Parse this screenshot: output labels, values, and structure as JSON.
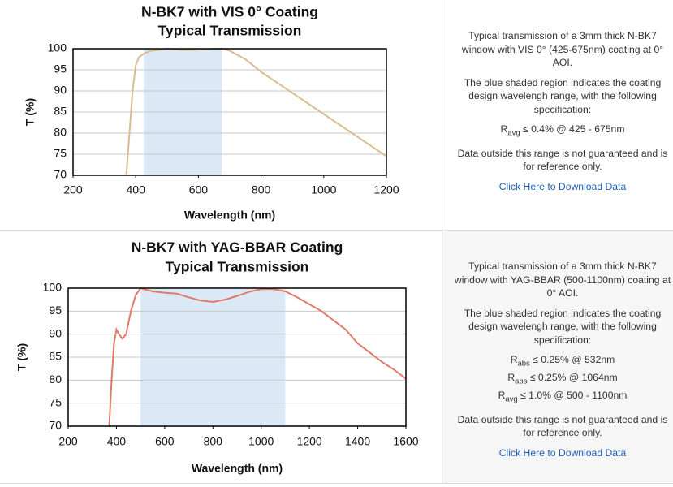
{
  "chart_data": [
    {
      "type": "line",
      "title": "N-BK7 with VIS 0° Coating",
      "subtitle": "Typical Transmission",
      "x_label": "Wavelength (nm)",
      "y_label": "T (%)",
      "x": [
        370,
        380,
        390,
        400,
        410,
        430,
        450,
        500,
        550,
        600,
        650,
        680,
        700,
        750,
        800,
        850,
        900,
        950,
        1000,
        1050,
        1100,
        1150,
        1200
      ],
      "values": [
        70,
        80,
        90,
        96,
        98,
        99,
        99.5,
        100,
        99.7,
        99.8,
        100,
        100,
        99.5,
        97.5,
        94.5,
        92,
        89.5,
        87,
        84.5,
        82,
        79.5,
        77,
        74.5
      ],
      "color": "#d9bc8f",
      "highlight_range": [
        425,
        675
      ],
      "highlight_color": "#dbe9f6",
      "xlim": [
        200,
        1200
      ],
      "xticks": [
        200,
        400,
        600,
        800,
        1000,
        1200
      ],
      "ylim": [
        70,
        100
      ],
      "yticks": [
        70,
        75,
        80,
        85,
        90,
        95,
        100
      ],
      "grid": true
    },
    {
      "type": "line",
      "title": "N-BK7 with YAG-BBAR Coating",
      "subtitle": "Typical Transmission",
      "x_label": "Wavelength (nm)",
      "y_label": "T (%)",
      "x": [
        370,
        380,
        390,
        400,
        410,
        425,
        440,
        460,
        480,
        500,
        550,
        600,
        650,
        700,
        750,
        800,
        850,
        900,
        950,
        1000,
        1050,
        1100,
        1150,
        1200,
        1250,
        1300,
        1350,
        1400,
        1450,
        1500,
        1550,
        1600
      ],
      "values": [
        70,
        80,
        88,
        91,
        90,
        89,
        90,
        95,
        98.5,
        100,
        99.3,
        99,
        98.8,
        98,
        97.3,
        97,
        97.5,
        98.3,
        99.2,
        99.8,
        99.8,
        99.3,
        98,
        96.5,
        95,
        93,
        91,
        88,
        86,
        84,
        82.3,
        80.3
      ],
      "color": "#e07b6a",
      "highlight_range": [
        500,
        1100
      ],
      "highlight_color": "#dbe9f6",
      "xlim": [
        200,
        1600
      ],
      "xticks": [
        200,
        400,
        600,
        800,
        1000,
        1200,
        1400,
        1600
      ],
      "ylim": [
        70,
        100
      ],
      "yticks": [
        70,
        75,
        80,
        85,
        90,
        95,
        100
      ],
      "grid": true
    }
  ],
  "panels": [
    {
      "paragraphs": [
        "Typical transmission of a 3mm thick N-BK7 window with VIS 0° (425-675nm) coating at 0° AOI.",
        "The blue shaded region indicates the coating design wavelengh range, with the following specification:"
      ],
      "specs": [
        {
          "symbol": "R",
          "sub": "avg",
          "text": "≤ 0.4% @ 425 - 675nm"
        }
      ],
      "note": "Data outside this range is not guaranteed and is for reference only.",
      "link": "Click Here to Download Data"
    },
    {
      "paragraphs": [
        "Typical transmission of a 3mm thick N-BK7 window with YAG-BBAR (500-1100nm) coating at 0° AOI.",
        "The blue shaded region indicates the coating design wavelengh range, with the following specification:"
      ],
      "specs": [
        {
          "symbol": "R",
          "sub": "abs",
          "text": "≤ 0.25% @ 532nm"
        },
        {
          "symbol": "R",
          "sub": "abs",
          "text": "≤ 0.25% @ 1064nm"
        },
        {
          "symbol": "R",
          "sub": "avg",
          "text": "≤ 1.0% @ 500 - 1100nm"
        }
      ],
      "note": "Data outside this range is not guaranteed and is for reference only.",
      "link": "Click Here to Download Data"
    }
  ]
}
